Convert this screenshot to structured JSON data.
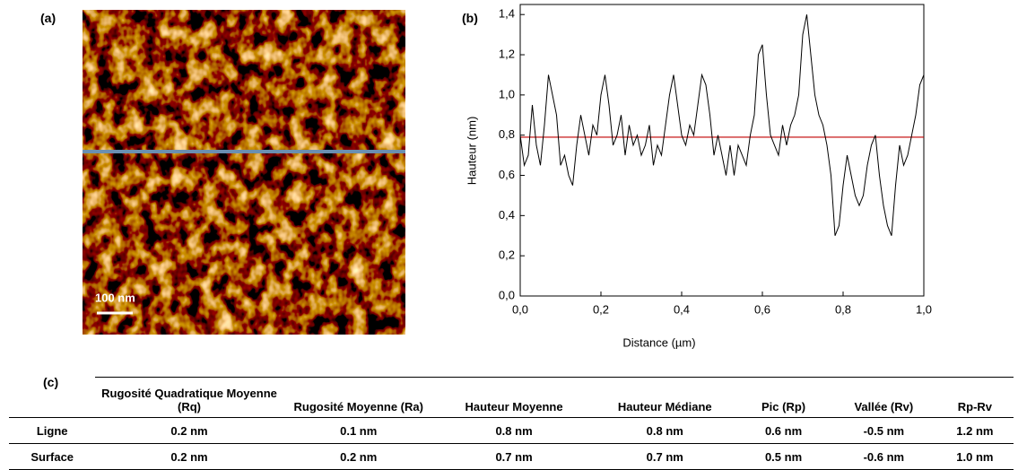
{
  "panels": {
    "a": "(a)",
    "b": "(b)",
    "c": "(c)",
    "scale_bar": "100 nm"
  },
  "chart_data": {
    "type": "line",
    "x_label": "Distance (µm)",
    "y_label": "Hauteur (nm)",
    "x": [
      0,
      0.01,
      0.02,
      0.03,
      0.04,
      0.05,
      0.06,
      0.07,
      0.08,
      0.09,
      0.1,
      0.11,
      0.12,
      0.13,
      0.14,
      0.15,
      0.16,
      0.17,
      0.18,
      0.19,
      0.2,
      0.21,
      0.22,
      0.23,
      0.24,
      0.25,
      0.26,
      0.27,
      0.28,
      0.29,
      0.3,
      0.31,
      0.32,
      0.33,
      0.34,
      0.35,
      0.36,
      0.37,
      0.38,
      0.39,
      0.4,
      0.41,
      0.42,
      0.43,
      0.44,
      0.45,
      0.46,
      0.47,
      0.48,
      0.49,
      0.5,
      0.51,
      0.52,
      0.53,
      0.54,
      0.55,
      0.56,
      0.57,
      0.58,
      0.59,
      0.6,
      0.61,
      0.62,
      0.63,
      0.64,
      0.65,
      0.66,
      0.67,
      0.68,
      0.69,
      0.7,
      0.71,
      0.72,
      0.73,
      0.74,
      0.75,
      0.76,
      0.77,
      0.78,
      0.79,
      0.8,
      0.81,
      0.82,
      0.83,
      0.84,
      0.85,
      0.86,
      0.87,
      0.88,
      0.89,
      0.9,
      0.91,
      0.92,
      0.93,
      0.94,
      0.95,
      0.96,
      0.97,
      0.98,
      0.99,
      1
    ],
    "series": [
      {
        "color": "#000000",
        "values": [
          0.8,
          0.65,
          0.7,
          0.95,
          0.75,
          0.65,
          0.85,
          1.1,
          1.0,
          0.9,
          0.65,
          0.7,
          0.6,
          0.55,
          0.75,
          0.9,
          0.8,
          0.7,
          0.85,
          0.8,
          1.0,
          1.1,
          0.95,
          0.75,
          0.8,
          0.9,
          0.7,
          0.85,
          0.75,
          0.8,
          0.7,
          0.75,
          0.85,
          0.65,
          0.75,
          0.7,
          0.85,
          1.0,
          1.1,
          0.95,
          0.8,
          0.75,
          0.85,
          0.8,
          0.95,
          1.1,
          1.05,
          0.9,
          0.7,
          0.8,
          0.7,
          0.6,
          0.75,
          0.6,
          0.75,
          0.7,
          0.65,
          0.8,
          0.9,
          1.2,
          1.25,
          1.0,
          0.8,
          0.75,
          0.7,
          0.85,
          0.75,
          0.85,
          0.9,
          1.0,
          1.3,
          1.4,
          1.2,
          1.0,
          0.9,
          0.85,
          0.75,
          0.6,
          0.3,
          0.35,
          0.55,
          0.7,
          0.6,
          0.5,
          0.45,
          0.5,
          0.65,
          0.75,
          0.8,
          0.6,
          0.45,
          0.35,
          0.3,
          0.55,
          0.75,
          0.65,
          0.7,
          0.8,
          0.9,
          1.05,
          1.1
        ]
      }
    ],
    "reference_line": {
      "value": 0.79,
      "color": "#c00000"
    },
    "xlim": [
      0,
      1
    ],
    "ylim": [
      0,
      1.45
    ],
    "xticks": [
      {
        "value": 0,
        "label": "0,0"
      },
      {
        "value": 0.2,
        "label": "0,2"
      },
      {
        "value": 0.4,
        "label": "0,4"
      },
      {
        "value": 0.6,
        "label": "0,6"
      },
      {
        "value": 0.8,
        "label": "0,8"
      },
      {
        "value": 1,
        "label": "1,0"
      }
    ],
    "yticks": [
      {
        "value": 0,
        "label": "0,0"
      },
      {
        "value": 0.2,
        "label": "0,2"
      },
      {
        "value": 0.4,
        "label": "0,4"
      },
      {
        "value": 0.6,
        "label": "0,6"
      },
      {
        "value": 0.8,
        "label": "0,8"
      },
      {
        "value": 1,
        "label": "1,0"
      },
      {
        "value": 1.2,
        "label": "1,2"
      },
      {
        "value": 1.4,
        "label": "1,4"
      }
    ]
  },
  "table": {
    "header": [
      "Rugosité Quadratique Moyenne (Rq)",
      "Rugosité Moyenne (Ra)",
      "Hauteur Moyenne",
      "Hauteur Médiane",
      "Pic (Rp)",
      "Vallée (Rv)",
      "Rp-Rv"
    ],
    "rows": [
      [
        "Ligne",
        "0.2 nm",
        "0.1 nm",
        "0.8 nm",
        "0.8 nm",
        "0.6 nm",
        "-0.5 nm",
        "1.2 nm"
      ],
      [
        "Surface",
        "0.2 nm",
        "0.2 nm",
        "0.7 nm",
        "0.7 nm",
        "0.5 nm",
        "-0.6 nm",
        "1.0 nm"
      ]
    ]
  }
}
